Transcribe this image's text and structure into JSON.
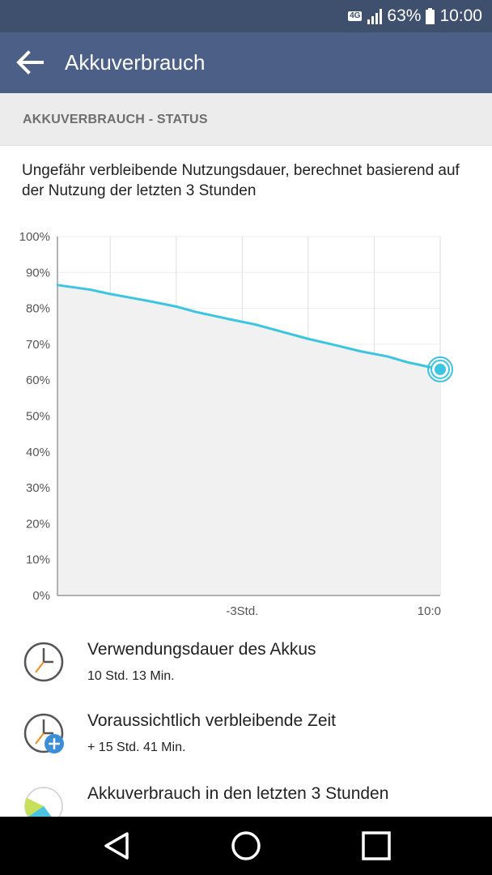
{
  "status_bar": {
    "network_type": "4G",
    "battery_percent": "63%",
    "time": "10:00",
    "icons": [
      "signal-icon",
      "battery-icon"
    ]
  },
  "app_bar": {
    "title": "Akkuverbrauch",
    "back_icon": "arrow-back-icon"
  },
  "section": {
    "header": "AKKUVERBRAUCH - STATUS",
    "description": "Ungefähr verbleibende Nutzungsdauer, berechnet basierend auf der Nutzung der letzten 3 Stunden"
  },
  "chart_data": {
    "type": "area",
    "y_ticks": [
      "100%",
      "90%",
      "80%",
      "70%",
      "60%",
      "50%",
      "40%",
      "30%",
      "20%",
      "10%",
      "0%"
    ],
    "ylim": [
      0,
      100
    ],
    "x_tick_labels": [
      "-3Std.",
      "10:0"
    ],
    "x_range_hours": [
      -5.8,
      0
    ],
    "grid": true,
    "x": [
      -5.8,
      -5.3,
      -5.0,
      -4.7,
      -4.35,
      -4.0,
      -3.7,
      -3.5,
      -3.2,
      -2.8,
      -2.4,
      -2.0,
      -1.6,
      -1.2,
      -0.8,
      -0.5,
      -0.25,
      0
    ],
    "values": [
      86.5,
      85.2,
      84.0,
      83.0,
      81.8,
      80.5,
      79.0,
      78.2,
      77.0,
      75.5,
      73.5,
      71.5,
      69.8,
      68.0,
      66.6,
      65.0,
      64.0,
      63.0
    ],
    "series": [
      {
        "values": [
          86.5,
          85.2,
          84.0,
          83.0,
          81.8,
          80.5,
          79.0,
          78.2,
          77.0,
          75.5,
          73.5,
          71.5,
          69.8,
          68.0,
          66.6,
          65.0,
          64.0,
          63.0
        ]
      }
    ],
    "line_color": "#3cc5e0",
    "fill_color": "#f1f1f1"
  },
  "items": [
    {
      "icon": "clock-icon",
      "title": "Verwendungsdauer des Akkus",
      "value": "10 Std. 13 Min."
    },
    {
      "icon": "clock-plus-icon",
      "title": "Voraussichtlich verbleibende Zeit",
      "value": "+ 15 Std. 41 Min."
    },
    {
      "icon": "pie-chart-icon",
      "title": "Akkuverbrauch in den letzten 3 Stunden",
      "value": ""
    }
  ],
  "nav": {
    "back": "back-triangle-icon",
    "home": "home-circle-icon",
    "recents": "recents-square-icon"
  },
  "colors": {
    "status_bar": "#3f4f6e",
    "app_bar": "#4c5f86",
    "accent": "#3cc5e0",
    "section_bg": "#ececec"
  }
}
